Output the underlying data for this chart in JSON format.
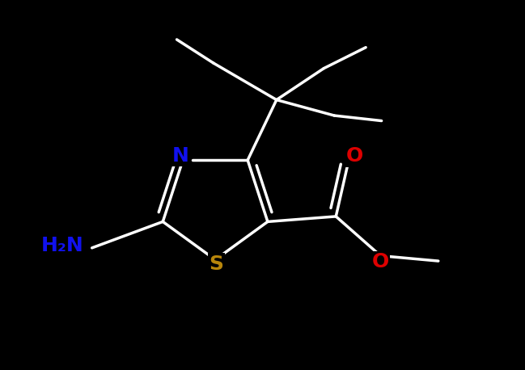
{
  "bg_color": "#000000",
  "fig_width": 6.49,
  "fig_height": 4.58,
  "dpi": 100,
  "bond_color": "#ffffff",
  "bond_lw": 2.5,
  "N_color": "#1111ee",
  "S_color": "#b8860b",
  "O_color": "#dd0000",
  "H2N_color": "#1111ee",
  "label_fontsize": 18,
  "xlim": [
    0,
    10
  ],
  "ylim": [
    0,
    7.05
  ]
}
